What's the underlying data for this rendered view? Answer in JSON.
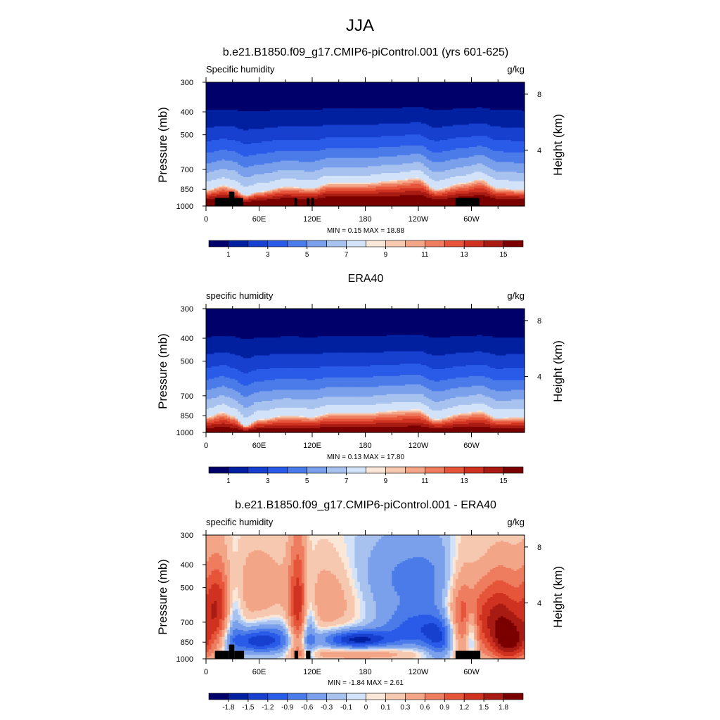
{
  "figure": {
    "season": "JJA",
    "colormap": [
      "#00006b",
      "#0020a0",
      "#1740cf",
      "#2a5ae8",
      "#4a7be8",
      "#7aa0ec",
      "#a8c2f0",
      "#d2e2f8",
      "#fbe7d8",
      "#f7c8b0",
      "#f3a587",
      "#ee7d5f",
      "#e6543a",
      "#cf3220",
      "#a81b12",
      "#7a0000"
    ],
    "pressure_ticks": [
      "300",
      "400",
      "500",
      "700",
      "850",
      "1000"
    ],
    "height_ticks": [
      "8",
      "4"
    ],
    "lon_ticks": [
      "0",
      "60E",
      "120E",
      "180",
      "120W",
      "60W"
    ]
  },
  "chart_data": [
    {
      "type": "heatmap",
      "title": "b.e21.B1850.f09_g17.CMIP6-piControl.001 (yrs 601-625)",
      "left_label": "Specific humidity",
      "right_label": "g/kg",
      "ylabel": "Pressure (mb)",
      "ylabel_right": "Height (km)",
      "ylim": [
        1000,
        300
      ],
      "xlim": [
        0,
        360
      ],
      "min_max_text": "MIN =   0.15  MAX =  18.88",
      "colorbar_labels": [
        "1",
        "3",
        "5",
        "7",
        "9",
        "11",
        "13",
        "15"
      ],
      "levels": [
        0.5,
        1,
        2,
        3,
        4,
        5,
        6,
        7,
        8,
        9,
        10,
        11,
        12,
        13,
        14,
        15
      ],
      "ridge_lons": [
        0,
        20,
        30,
        45,
        60,
        90,
        120,
        140,
        180,
        210,
        240,
        260,
        290,
        310,
        330,
        360
      ],
      "ridge_pressures": [
        855,
        820,
        835,
        900,
        870,
        830,
        840,
        800,
        800,
        780,
        760,
        850,
        800,
        770,
        840,
        855
      ],
      "surface_q": 17.5,
      "terrain": [
        [
          10,
          26,
          925
        ],
        [
          26,
          32,
          870
        ],
        [
          32,
          42,
          925
        ],
        [
          100,
          103,
          925
        ],
        [
          114,
          117,
          925
        ],
        [
          119,
          122,
          925
        ],
        [
          282,
          309,
          925
        ]
      ]
    },
    {
      "type": "heatmap",
      "title": "ERA40",
      "left_label": "specific humidity",
      "right_label": "g/kg",
      "ylabel": "Pressure (mb)",
      "ylabel_right": "Height (km)",
      "ylim": [
        1000,
        300
      ],
      "xlim": [
        0,
        360
      ],
      "min_max_text": "MIN =   0.13  MAX =  17.80",
      "colorbar_labels": [
        "1",
        "3",
        "5",
        "7",
        "9",
        "11",
        "13",
        "15"
      ],
      "levels": [
        0.5,
        1,
        2,
        3,
        4,
        5,
        6,
        7,
        8,
        9,
        10,
        11,
        12,
        13,
        14,
        15
      ],
      "ridge_lons": [
        0,
        20,
        30,
        45,
        60,
        90,
        120,
        140,
        180,
        210,
        240,
        260,
        290,
        310,
        330,
        360
      ],
      "ridge_pressures": [
        860,
        820,
        850,
        940,
        880,
        850,
        860,
        830,
        830,
        810,
        800,
        880,
        830,
        810,
        870,
        860
      ],
      "surface_q": 16.5,
      "terrain": []
    },
    {
      "type": "heatmap",
      "title": "b.e21.B1850.f09_g17.CMIP6-piControl.001 - ERA40",
      "left_label": "specific humidity",
      "right_label": "g/kg",
      "ylabel": "Pressure (mb)",
      "ylabel_right": "Height (km)",
      "ylim": [
        1000,
        300
      ],
      "xlim": [
        0,
        360
      ],
      "min_max_text": "MIN =  -1.84  MAX =   2.61",
      "colorbar_labels": [
        "-1.8",
        "-1.5",
        "-1.2",
        "-0.9",
        "-0.6",
        "-0.3",
        "-0.1",
        "0",
        "0.1",
        "0.3",
        "0.6",
        "0.9",
        "1.2",
        "1.5",
        "1.8"
      ],
      "levels": [
        -1.8,
        -1.5,
        -1.2,
        -0.9,
        -0.6,
        -0.3,
        -0.1,
        0,
        0.1,
        0.3,
        0.6,
        0.9,
        1.2,
        1.5,
        1.8
      ],
      "anomalies": [
        {
          "lon": 15,
          "p": 600,
          "sx": 14,
          "sy": 180,
          "a": 1.4
        },
        {
          "lon": 30,
          "p": 650,
          "sx": 8,
          "sy": 200,
          "a": -1.0
        },
        {
          "lon": 55,
          "p": 840,
          "sx": 20,
          "sy": 70,
          "a": -1.2
        },
        {
          "lon": 80,
          "p": 820,
          "sx": 18,
          "sy": 100,
          "a": -0.6
        },
        {
          "lon": 60,
          "p": 500,
          "sx": 25,
          "sy": 150,
          "a": 0.5
        },
        {
          "lon": 105,
          "p": 650,
          "sx": 8,
          "sy": 300,
          "a": 1.3
        },
        {
          "lon": 115,
          "p": 750,
          "sx": 6,
          "sy": 250,
          "a": -0.9
        },
        {
          "lon": 140,
          "p": 550,
          "sx": 25,
          "sy": 150,
          "a": 0.6
        },
        {
          "lon": 170,
          "p": 830,
          "sx": 28,
          "sy": 55,
          "a": -1.6
        },
        {
          "lon": 175,
          "p": 950,
          "sx": 50,
          "sy": 40,
          "a": 0.6
        },
        {
          "lon": 240,
          "p": 450,
          "sx": 55,
          "sy": 140,
          "a": -0.7
        },
        {
          "lon": 240,
          "p": 750,
          "sx": 30,
          "sy": 100,
          "a": -1.0
        },
        {
          "lon": 265,
          "p": 850,
          "sx": 12,
          "sy": 120,
          "a": -0.9
        },
        {
          "lon": 290,
          "p": 650,
          "sx": 14,
          "sy": 220,
          "a": 1.2
        },
        {
          "lon": 300,
          "p": 780,
          "sx": 5,
          "sy": 150,
          "a": -1.0
        },
        {
          "lon": 330,
          "p": 650,
          "sx": 20,
          "sy": 200,
          "a": 1.6
        },
        {
          "lon": 345,
          "p": 860,
          "sx": 15,
          "sy": 120,
          "a": 1.3
        }
      ],
      "terrain": [
        [
          10,
          26,
          925
        ],
        [
          26,
          32,
          870
        ],
        [
          32,
          43,
          925
        ],
        [
          100,
          104,
          925
        ],
        [
          113,
          118,
          925
        ],
        [
          282,
          310,
          925
        ]
      ]
    }
  ]
}
